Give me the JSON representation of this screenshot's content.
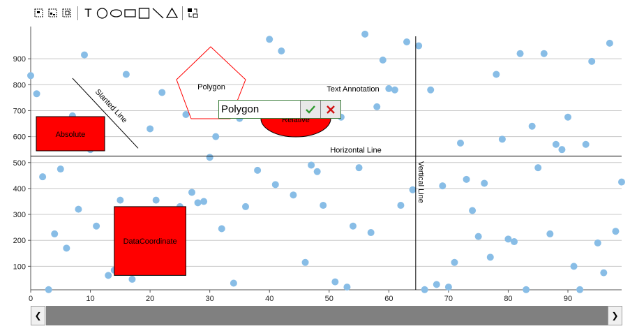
{
  "toolbar": {
    "items": [
      {
        "name": "select-icon",
        "label": "Select"
      },
      {
        "name": "select-points-icon",
        "label": "Select points"
      },
      {
        "name": "zoom-box-icon",
        "label": "Zoom box"
      },
      {
        "name": "text-tool-icon",
        "label": "T"
      },
      {
        "name": "circle-tool-icon",
        "label": "Circle"
      },
      {
        "name": "ellipse-tool-icon",
        "label": "Ellipse"
      },
      {
        "name": "rectangle-tool-icon",
        "label": "Rectangle"
      },
      {
        "name": "square-tool-icon",
        "label": "Square"
      },
      {
        "name": "line-tool-icon",
        "label": "Line"
      },
      {
        "name": "triangle-tool-icon",
        "label": "Triangle"
      },
      {
        "name": "reset-icon",
        "label": "Reset"
      }
    ]
  },
  "editor": {
    "value": "Polygon",
    "accept_icon": "checkmark-icon",
    "cancel_icon": "close-icon",
    "accept_color": "#2e9a2e",
    "cancel_color": "#d01010"
  },
  "chart_data": {
    "type": "scatter",
    "x_ticks": [
      "0",
      "10",
      "20",
      "30",
      "40",
      "50",
      "60",
      "70",
      "80",
      "90"
    ],
    "y_ticks": [
      "100",
      "200",
      "300",
      "400",
      "500",
      "600",
      "700",
      "800",
      "900"
    ],
    "xlim": [
      0,
      99
    ],
    "ylim": [
      0,
      1000
    ],
    "grid": "horizontal",
    "point_color": "#88bde6",
    "series": [
      {
        "points": [
          [
            0,
            835
          ],
          [
            1,
            765
          ],
          [
            2,
            445
          ],
          [
            3,
            10
          ],
          [
            4,
            225
          ],
          [
            5,
            475
          ],
          [
            6,
            170
          ],
          [
            7,
            680
          ],
          [
            8,
            320
          ],
          [
            9,
            915
          ],
          [
            10,
            550
          ],
          [
            11,
            255
          ],
          [
            13,
            65
          ],
          [
            14,
            85
          ],
          [
            15,
            355
          ],
          [
            16,
            840
          ],
          [
            17,
            50
          ],
          [
            20,
            630
          ],
          [
            21,
            355
          ],
          [
            22,
            770
          ],
          [
            25,
            330
          ],
          [
            26,
            685
          ],
          [
            27,
            385
          ],
          [
            28,
            345
          ],
          [
            29,
            350
          ],
          [
            30,
            520
          ],
          [
            31,
            600
          ],
          [
            32,
            245
          ],
          [
            34,
            35
          ],
          [
            35,
            670
          ],
          [
            36,
            330
          ],
          [
            38,
            470
          ],
          [
            40,
            975
          ],
          [
            41,
            415
          ],
          [
            42,
            930
          ],
          [
            44,
            375
          ],
          [
            46,
            115
          ],
          [
            47,
            490
          ],
          [
            48,
            465
          ],
          [
            49,
            335
          ],
          [
            51,
            40
          ],
          [
            52,
            675
          ],
          [
            53,
            20
          ],
          [
            54,
            255
          ],
          [
            55,
            480
          ],
          [
            56,
            995
          ],
          [
            57,
            230
          ],
          [
            58,
            715
          ],
          [
            59,
            895
          ],
          [
            60,
            785
          ],
          [
            61,
            780
          ],
          [
            62,
            335
          ],
          [
            63,
            965
          ],
          [
            64,
            395
          ],
          [
            65,
            950
          ],
          [
            66,
            10
          ],
          [
            67,
            780
          ],
          [
            68,
            30
          ],
          [
            69,
            410
          ],
          [
            70,
            20
          ],
          [
            71,
            115
          ],
          [
            72,
            575
          ],
          [
            73,
            435
          ],
          [
            74,
            315
          ],
          [
            75,
            215
          ],
          [
            76,
            420
          ],
          [
            77,
            135
          ],
          [
            78,
            840
          ],
          [
            79,
            590
          ],
          [
            80,
            205
          ],
          [
            81,
            195
          ],
          [
            82,
            920
          ],
          [
            83,
            10
          ],
          [
            84,
            640
          ],
          [
            85,
            480
          ],
          [
            86,
            920
          ],
          [
            87,
            225
          ],
          [
            88,
            570
          ],
          [
            89,
            550
          ],
          [
            90,
            675
          ],
          [
            91,
            100
          ],
          [
            92,
            10
          ],
          [
            93,
            570
          ],
          [
            94,
            890
          ],
          [
            95,
            190
          ],
          [
            96,
            75
          ],
          [
            97,
            960
          ],
          [
            98,
            235
          ],
          [
            99,
            425
          ]
        ]
      }
    ],
    "annotations": {
      "slanted_line": {
        "text": "Slanted Line",
        "from": [
          7,
          825
        ],
        "to": [
          18,
          555
        ]
      },
      "absolute": {
        "text": "Absolute",
        "fill": "#ff0000"
      },
      "polygon": {
        "text": "Polygon",
        "stroke": "#ff0000"
      },
      "relative": {
        "text": "Relative",
        "fill": "#ff0000"
      },
      "text_annotation": {
        "text": "Text Annotation",
        "x": 54,
        "y": 785
      },
      "horizontal_line": {
        "text": "Horizontal Line",
        "y": 525
      },
      "vertical_line": {
        "text": "Vertical Line",
        "x": 64.5
      },
      "data_coordinate": {
        "text": "DataCoordinate",
        "x1": 14,
        "x2": 26,
        "y1": 65,
        "y2": 330,
        "fill": "#ff0000"
      }
    }
  }
}
